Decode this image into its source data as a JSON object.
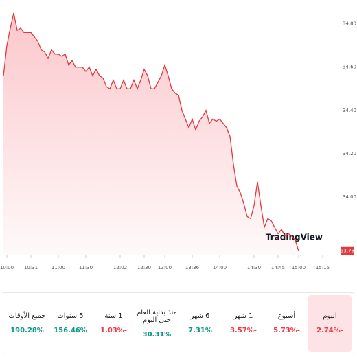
{
  "chart_data": {
    "type": "area",
    "color": "#e03a3e",
    "series": [
      {
        "name": null,
        "color": "#e03a3e",
        "values": [
          34.56,
          34.7,
          34.78,
          34.85,
          34.77,
          34.78,
          34.76,
          34.76,
          34.76,
          34.74,
          34.72,
          34.68,
          34.67,
          34.64,
          34.68,
          34.66,
          34.66,
          34.65,
          34.66,
          34.61,
          34.63,
          34.6,
          34.6,
          34.6,
          34.58,
          34.6,
          34.56,
          34.59,
          34.56,
          34.55,
          34.51,
          34.5,
          34.54,
          34.5,
          34.5,
          34.54,
          34.5,
          34.5,
          34.54,
          34.5,
          34.54,
          34.59,
          34.56,
          34.5,
          34.5,
          34.53,
          34.56,
          34.61,
          34.56,
          34.5,
          34.48,
          34.47,
          34.4,
          34.36,
          34.32,
          34.36,
          34.31,
          34.35,
          34.37,
          34.4,
          34.34,
          34.36,
          34.35,
          34.36,
          34.34,
          34.32,
          34.28,
          34.15,
          34.05,
          34.02,
          33.97,
          33.91,
          33.9,
          33.96,
          34.07,
          33.96,
          33.86,
          33.9,
          33.89,
          33.86,
          33.83,
          33.85,
          33.82,
          33.83,
          33.82,
          33.8,
          33.75
        ]
      }
    ],
    "xlim": [
      -1,
      99
    ],
    "xticks": [
      {
        "value": 1,
        "label": "10:00"
      },
      {
        "value": 8,
        "label": "10:31"
      },
      {
        "value": 16,
        "label": "11:00"
      },
      {
        "value": 24,
        "label": "11:30"
      },
      {
        "value": 34,
        "label": "12:02"
      },
      {
        "value": 41,
        "label": "12:30"
      },
      {
        "value": 47,
        "label": "13:00"
      },
      {
        "value": 55,
        "label": "13:36"
      },
      {
        "value": 63,
        "label": "14:00"
      },
      {
        "value": 73,
        "label": "14:30"
      },
      {
        "value": 80,
        "label": "14:45"
      },
      {
        "value": 86,
        "label": "15:00"
      },
      {
        "value": 93,
        "label": "15:15"
      }
    ],
    "ylim": [
      33.73,
      34.91
    ],
    "yticks": [
      {
        "value": 34.8,
        "label": "34.80"
      },
      {
        "value": 34.6,
        "label": "34.60"
      },
      {
        "value": 34.4,
        "label": "34.40"
      },
      {
        "value": 34.2,
        "label": "34.20"
      },
      {
        "value": 34.0,
        "label": "34.00"
      }
    ],
    "watermark": "TradingView"
  },
  "periods": [
    {
      "name": "اليوم",
      "change": "2.74%-"
    },
    {
      "name": "أسبوع",
      "change": "5.73%-"
    },
    {
      "name": "1 شهر",
      "change": "3.57%-"
    },
    {
      "name": "6 شهر",
      "change": "7.31%"
    },
    {
      "name": "منذ بداية العام حتى اليوم",
      "change": "30.31%"
    },
    {
      "name": "1 سنة",
      "change": "1.03%-"
    },
    {
      "name": "5 سنوات",
      "change": "156.46%"
    },
    {
      "name": "جميع الأوقات",
      "change": "190.28%"
    }
  ]
}
